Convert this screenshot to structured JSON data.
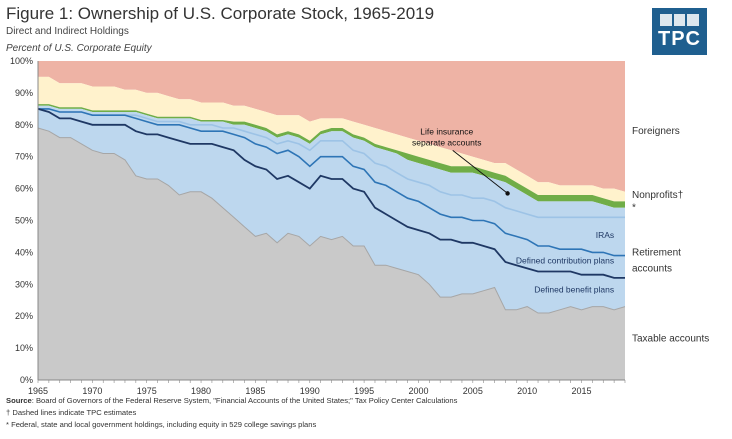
{
  "header": {
    "title": "Figure 1: Ownership of U.S. Corporate Stock, 1965-2019",
    "subtitle": "Direct and Indirect Holdings",
    "unit": "Percent of U.S. Corporate Equity"
  },
  "logo": {
    "text": "TPC",
    "color": "#1f5f8f"
  },
  "footnotes": {
    "source_label": "Source",
    "source_text": ": Board of Governors of the Federal Reserve System, \"Financial Accounts of the United States;\" Tax Policy Center Calculations",
    "dagger": "† Dashed lines indicate TPC estimates",
    "asterisk": "* Federal, state and local government holdings, including equity in 529 college savings plans"
  },
  "chart_data": {
    "type": "area",
    "x": [
      1965,
      1966,
      1967,
      1968,
      1969,
      1970,
      1971,
      1972,
      1973,
      1974,
      1975,
      1976,
      1977,
      1978,
      1979,
      1980,
      1981,
      1982,
      1983,
      1984,
      1985,
      1986,
      1987,
      1988,
      1989,
      1990,
      1991,
      1992,
      1993,
      1994,
      1995,
      1996,
      1997,
      1998,
      1999,
      2000,
      2001,
      2002,
      2003,
      2004,
      2005,
      2006,
      2007,
      2008,
      2009,
      2010,
      2011,
      2012,
      2013,
      2014,
      2015,
      2016,
      2017,
      2018,
      2019
    ],
    "xticks": [
      1965,
      1970,
      1975,
      1980,
      1985,
      1990,
      1995,
      2000,
      2005,
      2010,
      2015
    ],
    "ylim": [
      0,
      100
    ],
    "yticks": [
      0,
      10,
      20,
      30,
      40,
      50,
      60,
      70,
      80,
      90,
      100
    ],
    "ytick_labels": [
      "0%",
      "10%",
      "20%",
      "30%",
      "40%",
      "50%",
      "60%",
      "70%",
      "80%",
      "90%",
      "100%"
    ],
    "cumulative_boundaries": [
      {
        "key": "taxable",
        "values": [
          79,
          78,
          76,
          76,
          74,
          72,
          71,
          71,
          69,
          64,
          63,
          63,
          61,
          58,
          59,
          59,
          57,
          54,
          51,
          48,
          45,
          46,
          43,
          46,
          45,
          42,
          45,
          44,
          45,
          42,
          42,
          36,
          36,
          35,
          34,
          33,
          30,
          26,
          26,
          27,
          27,
          28,
          29,
          22,
          22,
          23,
          21,
          21,
          22,
          23,
          22,
          23,
          23,
          22,
          23
        ]
      },
      {
        "key": "defined_benefit",
        "values": [
          85,
          84,
          82,
          82,
          81,
          80,
          80,
          80,
          80,
          78,
          77,
          77,
          76,
          75,
          74,
          74,
          74,
          73,
          72,
          69,
          67,
          66,
          63,
          64,
          62,
          60,
          64,
          63,
          63,
          60,
          59,
          54,
          52,
          50,
          48,
          47,
          46,
          44,
          44,
          43,
          43,
          42,
          41,
          37,
          36,
          35,
          34,
          34,
          34,
          34,
          33,
          33,
          33,
          32,
          32
        ]
      },
      {
        "key": "defined_contribution",
        "values": [
          85,
          85,
          84,
          84,
          84,
          83,
          83,
          83,
          83,
          82,
          81,
          80,
          80,
          80,
          79,
          78,
          78,
          78,
          77,
          76,
          74,
          73,
          71,
          72,
          70,
          67,
          70,
          70,
          70,
          67,
          66,
          62,
          61,
          59,
          57,
          56,
          54,
          52,
          51,
          51,
          50,
          50,
          49,
          46,
          45,
          44,
          42,
          42,
          41,
          41,
          41,
          40,
          40,
          39,
          39
        ]
      },
      {
        "key": "iras",
        "values": [
          85,
          85,
          84,
          84,
          84,
          83,
          83,
          83,
          83,
          83,
          82,
          81,
          81,
          81,
          80,
          80,
          80,
          79,
          79,
          78,
          77,
          76,
          74,
          75,
          74,
          72,
          75,
          75,
          75,
          72,
          71,
          68,
          67,
          65,
          63,
          62,
          61,
          59,
          58,
          58,
          57,
          57,
          56,
          54,
          53,
          52,
          51,
          51,
          51,
          51,
          51,
          51,
          51,
          51,
          51
        ]
      },
      {
        "key": "retirement_top",
        "values": [
          86,
          86,
          85,
          85,
          85,
          84,
          84,
          84,
          84,
          84,
          83,
          82,
          82,
          82,
          82,
          81,
          81,
          81,
          80,
          80,
          79,
          78,
          76,
          77,
          76,
          74,
          77,
          78,
          78,
          76,
          75,
          73,
          72,
          71,
          69,
          68,
          67,
          66,
          65,
          65,
          65,
          64,
          63,
          62,
          60,
          58,
          56,
          56,
          56,
          56,
          56,
          56,
          55,
          54,
          54
        ]
      },
      {
        "key": "nonprofits_top",
        "values": [
          86.5,
          86.5,
          85.5,
          85.5,
          85.5,
          84.5,
          84.5,
          84.5,
          84.5,
          84.5,
          83.5,
          82.5,
          82.5,
          82.5,
          82.5,
          81.5,
          81.5,
          81.5,
          81,
          81,
          80,
          79,
          77,
          78,
          77,
          75,
          78,
          79,
          79,
          77,
          76,
          74,
          73,
          72,
          71,
          70,
          69,
          68,
          67,
          67,
          67,
          66,
          65,
          64,
          62,
          60,
          58,
          58,
          58,
          58,
          58,
          58,
          57,
          56,
          56
        ]
      },
      {
        "key": "others_top",
        "values": [
          95,
          95,
          93,
          93,
          93,
          92,
          92,
          92,
          91,
          91,
          90,
          90,
          89,
          88,
          88,
          87,
          87,
          87,
          86,
          86,
          85,
          84,
          83,
          83,
          83,
          81,
          82,
          82,
          82,
          81,
          80,
          79,
          78,
          77,
          76,
          75,
          74,
          73,
          72,
          71,
          70,
          69,
          68,
          68,
          66,
          64,
          62,
          62,
          61,
          61,
          61,
          61,
          60,
          60,
          59
        ]
      }
    ],
    "area_colors": {
      "taxable": "#c9c9c9",
      "retirement": "#bdd7ee",
      "nonprofits": "#70ad47",
      "others": "#fff2cc",
      "foreigners": "#eeb3a5"
    },
    "line_colors": {
      "taxable": "#a6a6a6",
      "defined_benefit": "#1f3864",
      "defined_contribution": "#2e75b6",
      "iras": "#9dc3e6"
    },
    "right_labels": [
      {
        "text": "Foreigners",
        "y": 78
      },
      {
        "text": "Nonprofits†",
        "y": 58
      },
      {
        "text": "*",
        "y": 54
      },
      {
        "text": "Retirement",
        "y": 40
      },
      {
        "text": "accounts",
        "y": 35
      },
      {
        "text": "Taxable accounts",
        "y": 13
      }
    ],
    "inner_labels": [
      {
        "text": "IRAs",
        "x": 2018,
        "y": 44.5
      },
      {
        "text": "Defined contribution plans",
        "x": 2018,
        "y": 36.5
      },
      {
        "text": "Defined benefit plans",
        "x": 2018,
        "y": 27.5
      }
    ],
    "annotation": {
      "text_lines": [
        "Life insurance",
        "separate accounts"
      ],
      "x": 2002.6,
      "y": 77,
      "arrow_to_x": 2008.2,
      "arrow_to_y": 58.5
    }
  }
}
